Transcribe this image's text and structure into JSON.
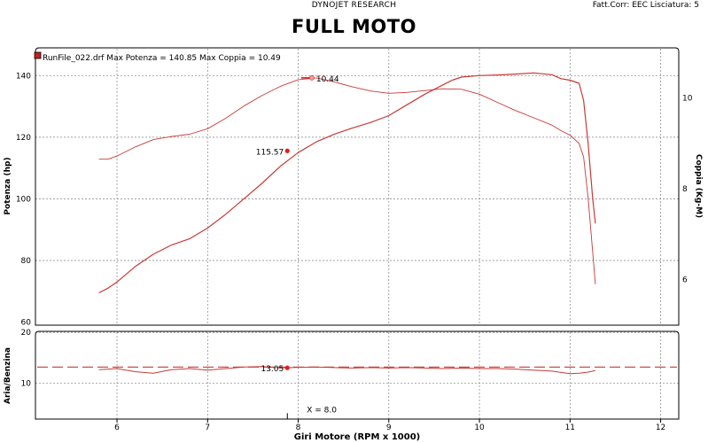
{
  "header": {
    "company": "DYNOJET RESEARCH",
    "title": "FULL MOTO",
    "correction": "Fatt.Corr: EEC  Lisciatura: 5"
  },
  "colors": {
    "curve": "#c83a36",
    "marker": "#e31c1c",
    "frame": "#000000",
    "grid": "#808080"
  },
  "chart_data": [
    {
      "type": "line",
      "legend": {
        "text": "RunFile_022.drf Max Potenza = 140.85      Max Coppia = 10.49",
        "placement": "top-left"
      },
      "xlabel": "Giri Motore (RPM x 1000)",
      "xticks": [
        "6",
        "7",
        "8",
        "9",
        "10",
        "11",
        "12"
      ],
      "xlim": [
        5.1,
        12.2
      ],
      "ylabel": "Potenza (hp)",
      "yticks": [
        "60",
        "80",
        "100",
        "120",
        "140"
      ],
      "ylim": [
        59,
        149
      ],
      "y2label": "Coppia (Kg-M)",
      "y2ticks": [
        "6",
        "8",
        "10"
      ],
      "y2lim": [
        5.0,
        11.1
      ],
      "grid": true,
      "series": [
        {
          "axis": "left",
          "x": [
            5.8,
            5.9,
            6.0,
            6.2,
            6.4,
            6.6,
            6.8,
            7.0,
            7.2,
            7.4,
            7.6,
            7.8,
            8.0,
            8.2,
            8.4,
            8.6,
            8.8,
            9.0,
            9.2,
            9.4,
            9.6,
            9.7,
            9.8,
            10.0,
            10.2,
            10.4,
            10.6,
            10.8,
            10.9,
            11.0,
            11.1,
            11.15,
            11.2,
            11.25,
            11.28
          ],
          "y": [
            69.5,
            71.0,
            73.0,
            78.0,
            82.0,
            85.0,
            87.0,
            90.5,
            95.0,
            100.0,
            105.0,
            110.5,
            115.0,
            118.5,
            121.0,
            123.0,
            124.8,
            127.0,
            130.5,
            134.0,
            137.0,
            138.5,
            139.5,
            140.0,
            140.2,
            140.5,
            140.85,
            140.3,
            139.0,
            138.5,
            137.5,
            132.0,
            118.0,
            100.0,
            92.0
          ]
        },
        {
          "axis": "right",
          "x": [
            5.8,
            5.9,
            6.0,
            6.2,
            6.4,
            6.6,
            6.8,
            7.0,
            7.2,
            7.4,
            7.6,
            7.8,
            8.0,
            8.2,
            8.4,
            8.6,
            8.8,
            9.0,
            9.2,
            9.4,
            9.6,
            9.8,
            10.0,
            10.2,
            10.4,
            10.6,
            10.8,
            10.9,
            11.0,
            11.1,
            11.15,
            11.2,
            11.25,
            11.28
          ],
          "y": [
            8.65,
            8.65,
            8.72,
            8.92,
            9.08,
            9.15,
            9.2,
            9.32,
            9.55,
            9.82,
            10.05,
            10.25,
            10.4,
            10.44,
            10.35,
            10.24,
            10.15,
            10.1,
            10.12,
            10.16,
            10.2,
            10.19,
            10.08,
            9.9,
            9.72,
            9.56,
            9.4,
            9.28,
            9.18,
            9.0,
            8.7,
            7.8,
            6.6,
            5.9
          ]
        }
      ],
      "annotations": [
        {
          "label": "115.57",
          "x": 7.88,
          "y": 115.57,
          "axis": "left"
        },
        {
          "label": "10.44",
          "x": 8.15,
          "y": 10.44,
          "axis": "right"
        }
      ]
    },
    {
      "type": "line",
      "xlabel": "Giri Motore (RPM x 1000)",
      "xlim": [
        5.1,
        12.2
      ],
      "ylabel": "Aria/Benzina",
      "yticks": [
        "10",
        "20"
      ],
      "ylim": [
        3,
        20.2
      ],
      "grid": true,
      "reference_line": 13.2,
      "series": [
        {
          "x": [
            5.8,
            6.0,
            6.2,
            6.4,
            6.6,
            6.8,
            7.0,
            7.2,
            7.4,
            7.6,
            7.8,
            8.0,
            8.2,
            8.4,
            8.6,
            8.8,
            9.0,
            9.2,
            9.4,
            9.6,
            9.8,
            10.0,
            10.2,
            10.4,
            10.6,
            10.8,
            11.0,
            11.1,
            11.2,
            11.28
          ],
          "y": [
            12.7,
            12.9,
            12.3,
            12.0,
            12.7,
            12.9,
            12.6,
            12.9,
            13.2,
            13.3,
            13.05,
            13.15,
            13.2,
            13.1,
            13.0,
            13.1,
            13.0,
            13.1,
            13.0,
            12.9,
            13.0,
            12.9,
            12.9,
            12.8,
            12.6,
            12.4,
            11.9,
            12.0,
            12.2,
            12.5
          ]
        }
      ],
      "annotations": [
        {
          "label": "13.05",
          "x": 7.88,
          "y": 13.05
        },
        {
          "label": "X = 8.0",
          "x": 7.88,
          "y": 4.5
        }
      ]
    }
  ]
}
